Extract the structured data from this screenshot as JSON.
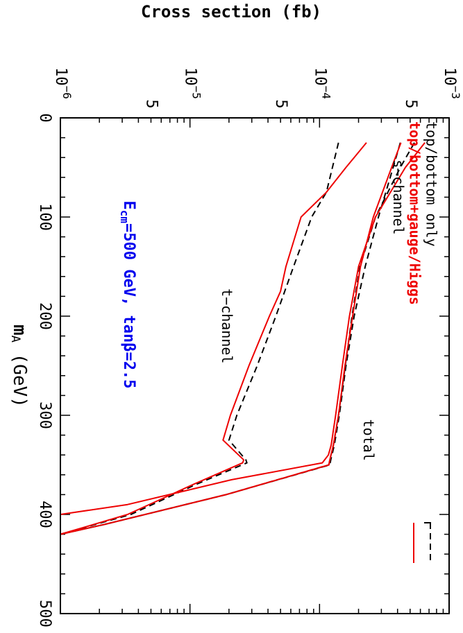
{
  "chart_data": {
    "type": "line",
    "orientation": "rotated-90",
    "xlabel": "m",
    "xlabel_sub": "A",
    "xlabel_unit": " (GeV)",
    "ylabel": "Cross section (fb)",
    "xlim": [
      0,
      500
    ],
    "ylim": [
      1e-06,
      0.001
    ],
    "yscale": "log",
    "x_ticks": [
      "0",
      "100",
      "200",
      "300",
      "400",
      "500"
    ],
    "y_decade_ticks": [
      {
        "base": "10",
        "exp": "−6"
      },
      {
        "base": "10",
        "exp": "−5"
      },
      {
        "base": "10",
        "exp": "−4"
      },
      {
        "base": "10",
        "exp": "−3"
      }
    ],
    "y_minor_labels": [
      "5",
      "5",
      "5"
    ],
    "annotation": {
      "e_main": "E",
      "e_sub": "cm",
      "rest_a": "=500 GeV, tan",
      "beta": "β",
      "rest_b": "=2.5",
      "color": "#0000ee"
    },
    "curve_labels": [
      {
        "text": "s−channel",
        "x": 80,
        "y": 0.0004
      },
      {
        "text": "t−channel",
        "x": 210,
        "y": 1.9e-05
      },
      {
        "text": "total",
        "x": 325,
        "y": 0.000235
      }
    ],
    "legend": {
      "position": "top-right",
      "entries": [
        {
          "label": "top/bottom only",
          "color": "#000000",
          "dash": true
        },
        {
          "label": "top/bottom+gauge/Higgs",
          "color": "#ee0000",
          "dash": false
        }
      ]
    },
    "series": [
      {
        "name": "top/bottom only",
        "curve": "total",
        "color": "#000000",
        "dash": true,
        "x": [
          25,
          50,
          100,
          150,
          200,
          250,
          300,
          330,
          345,
          350,
          380,
          410,
          420
        ],
        "y": [
          0.00054,
          0.00042,
          0.00027,
          0.000205,
          0.000178,
          0.000158,
          0.00014,
          0.000128,
          0.00012,
          0.000118,
          1.9e-05,
          2.2e-06,
          1e-06
        ]
      },
      {
        "name": "top/bottom only",
        "curve": "s-channel",
        "color": "#000000",
        "dash": true,
        "x": [
          25,
          50,
          100,
          150,
          200,
          250,
          300,
          330,
          345,
          350,
          380,
          410,
          420
        ],
        "y": [
          0.00042,
          0.00037,
          0.000285,
          0.000225,
          0.000185,
          0.00016,
          0.000142,
          0.00013,
          0.000122,
          0.00012,
          1.9e-05,
          2.2e-06,
          1e-06
        ]
      },
      {
        "name": "top/bottom only",
        "curve": "t-channel",
        "color": "#000000",
        "dash": true,
        "x": [
          25,
          75,
          100,
          150,
          200,
          250,
          300,
          325,
          345,
          348,
          370,
          400,
          420
        ],
        "y": [
          0.00014,
          0.000113,
          8.7e-05,
          6.3e-05,
          4.6e-05,
          3.3e-05,
          2.3e-05,
          2e-05,
          2.7e-05,
          2.75e-05,
          1.1e-05,
          3.5e-06,
          1e-06
        ]
      },
      {
        "name": "top/bottom+gauge/Higgs",
        "curve": "total",
        "color": "#ee0000",
        "dash": false,
        "x": [
          25,
          50,
          100,
          150,
          200,
          250,
          300,
          330,
          340,
          348,
          365,
          390,
          400
        ],
        "y": [
          0.00065,
          0.00046,
          0.00027,
          0.0002,
          0.00017,
          0.00015,
          0.000133,
          0.000123,
          0.000117,
          0.000105,
          2.1e-05,
          3.3e-06,
          1e-06
        ]
      },
      {
        "name": "top/bottom+gauge/Higgs",
        "curve": "s-channel",
        "color": "#ee0000",
        "dash": false,
        "x": [
          25,
          50,
          100,
          150,
          200,
          250,
          300,
          330,
          345,
          350,
          380,
          410,
          420
        ],
        "y": [
          0.000425,
          0.00036,
          0.00026,
          0.000207,
          0.00018,
          0.000157,
          0.00014,
          0.000128,
          0.00012,
          0.000118,
          1.9e-05,
          2.2e-06,
          1e-06
        ]
      },
      {
        "name": "top/bottom+gauge/Higgs",
        "curve": "t-channel",
        "color": "#ee0000",
        "dash": false,
        "x": [
          25,
          50,
          75,
          100,
          150,
          175,
          200,
          250,
          300,
          325,
          345,
          348,
          370,
          400,
          420
        ],
        "y": [
          0.00023,
          0.00016,
          0.000113,
          7.2e-05,
          5.5e-05,
          5e-05,
          4.1e-05,
          2.85e-05,
          2.05e-05,
          1.8e-05,
          2.6e-05,
          2.55e-05,
          1.05e-05,
          3.3e-06,
          1e-06
        ]
      }
    ]
  }
}
